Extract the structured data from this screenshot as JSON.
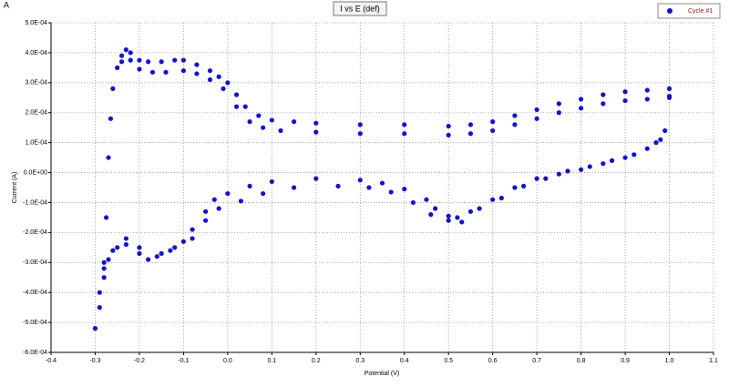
{
  "corner_label": "A",
  "chart_data": {
    "type": "scatter",
    "title": "I vs E (def)",
    "x_label": "Potential (V)",
    "y_label": "Current (A)",
    "legend_position": "top-right",
    "grid": true,
    "xlim": [
      -0.4,
      1.1
    ],
    "xticks": [
      -0.4,
      -0.3,
      -0.2,
      -0.1,
      {
        "value": 0,
        "label": "0.0"
      },
      0.1,
      0.2,
      0.3,
      0.4,
      0.5,
      0.6,
      0.7,
      0.8,
      0.9,
      {
        "value": 1,
        "label": "1.0"
      },
      1.1
    ],
    "ylim": [
      -0.0006,
      0.0005
    ],
    "yticks": [
      {
        "value": -0.0006,
        "label": "-6.0E-04"
      },
      {
        "value": -0.0005,
        "label": "-5.0E-04"
      },
      {
        "value": -0.0004,
        "label": "-4.0E-04"
      },
      {
        "value": -0.0003,
        "label": "-3.0E-04"
      },
      {
        "value": -0.0002,
        "label": "-2.0E-04"
      },
      {
        "value": -0.0001,
        "label": "-1.0E-04"
      },
      {
        "value": 0,
        "label": "0.0E+00"
      },
      {
        "value": 0.0001,
        "label": "1.0E-04"
      },
      {
        "value": 0.0002,
        "label": "2.0E-04"
      },
      {
        "value": 0.0003,
        "label": "3.0E-04"
      },
      {
        "value": 0.0004,
        "label": "4.0E-04"
      },
      {
        "value": 0.0005,
        "label": "5.0E-04"
      }
    ],
    "series": [
      {
        "name": "Cycle #1",
        "color": "#1414c8",
        "x": [
          -0.3,
          -0.29,
          -0.28,
          -0.275,
          -0.27,
          -0.265,
          -0.26,
          -0.25,
          -0.24,
          -0.23,
          -0.22,
          -0.2,
          -0.18,
          -0.15,
          -0.12,
          -0.1,
          -0.07,
          -0.04,
          -0.02,
          0,
          0.02,
          0.04,
          0.07,
          0.1,
          0.15,
          0.2,
          0.3,
          0.4,
          0.5,
          0.55,
          0.6,
          0.65,
          0.7,
          0.75,
          0.8,
          0.85,
          0.9,
          0.95,
          1,
          -0.24,
          -0.22,
          -0.2,
          -0.17,
          -0.14,
          -0.1,
          -0.07,
          -0.04,
          -0.01,
          0.02,
          0.05,
          0.08,
          0.12,
          0.2,
          0.3,
          0.4,
          0.5,
          0.55,
          0.6,
          0.65,
          0.7,
          0.75,
          0.8,
          0.85,
          0.9,
          0.95,
          1,
          1,
          0.99,
          0.98,
          0.95,
          0.9,
          0.85,
          0.8,
          0.75,
          0.7,
          0.65,
          0.6,
          0.55,
          0.52,
          0.5,
          0.47,
          0.45,
          0.4,
          0.35,
          0.3,
          0.2,
          0.1,
          0.05,
          0,
          -0.03,
          -0.05,
          -0.08,
          -0.1,
          -0.13,
          -0.16,
          -0.18,
          -0.2,
          -0.23,
          -0.25,
          -0.27,
          -0.28,
          -0.29,
          -0.3,
          0.97,
          0.92,
          0.87,
          0.82,
          0.77,
          0.72,
          0.67,
          0.62,
          0.57,
          0.53,
          0.5,
          0.46,
          0.42,
          0.37,
          0.32,
          0.25,
          0.15,
          0.08,
          0.03,
          -0.02,
          -0.05,
          -0.08,
          -0.12,
          -0.15,
          -0.2,
          -0.23,
          -0.26,
          -0.28
        ],
        "y": [
          -0.00052,
          -0.00045,
          -0.0003,
          -0.00015,
          5e-05,
          0.00018,
          0.00028,
          0.00035,
          0.00039,
          0.00041,
          0.0004,
          0.000375,
          0.00037,
          0.00037,
          0.000375,
          0.000375,
          0.00036,
          0.00034,
          0.00032,
          0.0003,
          0.00026,
          0.00022,
          0.00019,
          0.000175,
          0.00017,
          0.000165,
          0.00016,
          0.00016,
          0.000155,
          0.00016,
          0.00017,
          0.00019,
          0.00021,
          0.00023,
          0.000245,
          0.00026,
          0.00027,
          0.000275,
          0.00028,
          0.00037,
          0.000375,
          0.000345,
          0.000335,
          0.000335,
          0.00034,
          0.00033,
          0.00031,
          0.00028,
          0.00022,
          0.00017,
          0.00015,
          0.00014,
          0.000135,
          0.00013,
          0.00013,
          0.000125,
          0.00013,
          0.00014,
          0.00016,
          0.00018,
          0.0002,
          0.000215,
          0.00023,
          0.00024,
          0.000245,
          0.000255,
          0.00025,
          0.00014,
          0.00011,
          8e-05,
          5e-05,
          3e-05,
          1e-05,
          -5e-06,
          -2e-05,
          -5e-05,
          -9e-05,
          -0.00013,
          -0.00015,
          -0.000145,
          -0.00012,
          -9e-05,
          -5.5e-05,
          -3.5e-05,
          -2.5e-05,
          -2e-05,
          -3e-05,
          -4.5e-05,
          -7e-05,
          -9e-05,
          -0.00013,
          -0.00019,
          -0.00023,
          -0.00026,
          -0.00028,
          -0.00029,
          -0.00027,
          -0.00024,
          -0.00025,
          -0.00029,
          -0.00035,
          -0.0004,
          -0.00052,
          0.0001,
          6e-05,
          4e-05,
          2e-05,
          5e-06,
          -2e-05,
          -4.5e-05,
          -8.5e-05,
          -0.00012,
          -0.000165,
          -0.00016,
          -0.00014,
          -0.0001,
          -6.5e-05,
          -5e-05,
          -4.5e-05,
          -5e-05,
          -7e-05,
          -9.5e-05,
          -0.00012,
          -0.00016,
          -0.00022,
          -0.00025,
          -0.00027,
          -0.00025,
          -0.00022,
          -0.00026,
          -0.00032
        ]
      }
    ]
  }
}
